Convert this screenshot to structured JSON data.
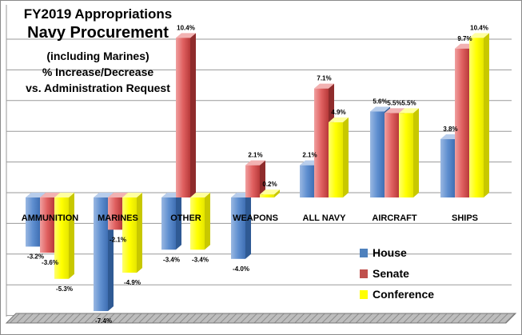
{
  "title": {
    "line1": "FY2019 Appropriations",
    "line2": "Navy Procurement",
    "line3": "(including Marines)",
    "line4": "% Increase/Decrease",
    "line5": "vs. Administration Request"
  },
  "legend": {
    "items": [
      {
        "name": "House",
        "color": "#4f81bd"
      },
      {
        "name": "Senate",
        "color": "#c0504d"
      },
      {
        "name": "Conference",
        "color": "#ffff00"
      }
    ],
    "placement": "bottom-right"
  },
  "chart_data": {
    "type": "bar",
    "style": "3d-clustered",
    "categories": [
      "Ammunition",
      "Marines",
      "Other",
      "Weapons",
      "ALL NAVY",
      "Aircraft",
      "Ships"
    ],
    "category_labels": [
      "AMMUNITION",
      "MARINES",
      "OTHER",
      "WEAPONS",
      "ALL NAVY",
      "AIRCRAFT",
      "SHIPS"
    ],
    "series": [
      {
        "name": "House",
        "color": "#4f81bd",
        "values": [
          -3.2,
          -7.4,
          -3.4,
          -4.0,
          2.1,
          5.6,
          3.8
        ],
        "labels": [
          "-3.2%",
          "-7.4%",
          "-3.4%",
          "-4.0%",
          "2.1%",
          "5.6%",
          "3.8%"
        ]
      },
      {
        "name": "Senate",
        "color": "#c0504d",
        "values": [
          -3.6,
          -2.1,
          10.4,
          2.1,
          7.1,
          5.5,
          9.7
        ],
        "labels": [
          "-3.6%",
          "-2.1%",
          "10.4%",
          "2.1%",
          "7.1%",
          "5.5%",
          "9.7%"
        ]
      },
      {
        "name": "Conference",
        "color": "#ffff00",
        "values": [
          -5.3,
          -4.9,
          -3.4,
          0.2,
          4.9,
          5.5,
          10.4
        ],
        "labels": [
          "-5.3%",
          "-4.9%",
          "-3.4%",
          "0.2%",
          "4.9%",
          "5.5%",
          "10.4%"
        ]
      }
    ],
    "ylim": [
      -8,
      11
    ],
    "gridlines": true,
    "tick_labels_visible": false
  }
}
